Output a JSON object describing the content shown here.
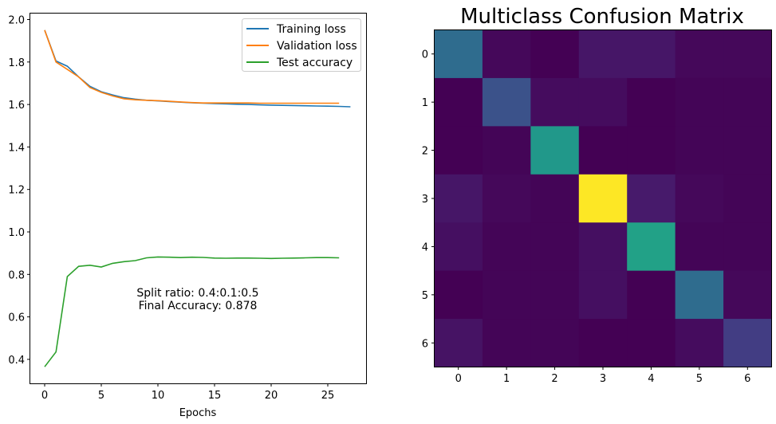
{
  "chart_data": [
    {
      "type": "line",
      "title": "",
      "xlabel": "Epochs",
      "ylabel": "",
      "xlim": [
        -1.35,
        28.35
      ],
      "ylim": [
        0.29,
        2.03
      ],
      "xticks": [
        "0",
        "5",
        "10",
        "15",
        "20",
        "25"
      ],
      "yticks": [
        "0.4",
        "0.6",
        "0.8",
        "1.0",
        "1.2",
        "1.4",
        "1.6",
        "1.8",
        "2.0"
      ],
      "grid": false,
      "legend_position": "upper-right",
      "annotation": [
        "Split ratio: 0.4:0.1:0.5",
        "Final Accuracy: 0.878"
      ],
      "series": [
        {
          "name": "Training loss",
          "color": "#1f77b4",
          "x": [
            0,
            1,
            2,
            3,
            4,
            5,
            6,
            7,
            8,
            9,
            10,
            11,
            12,
            13,
            14,
            15,
            16,
            17,
            18,
            19,
            20,
            21,
            22,
            23,
            24,
            25,
            26,
            27
          ],
          "y": [
            1.95,
            1.805,
            1.78,
            1.73,
            1.685,
            1.66,
            1.645,
            1.632,
            1.625,
            1.62,
            1.617,
            1.614,
            1.611,
            1.608,
            1.606,
            1.604,
            1.603,
            1.601,
            1.6,
            1.598,
            1.597,
            1.596,
            1.595,
            1.594,
            1.593,
            1.592,
            1.591,
            1.589
          ]
        },
        {
          "name": "Validation loss",
          "color": "#ff7f0e",
          "x": [
            0,
            1,
            2,
            3,
            4,
            5,
            6,
            7,
            8,
            9,
            10,
            11,
            12,
            13,
            14,
            15,
            16,
            17,
            18,
            19,
            20,
            21,
            22,
            23,
            24,
            25,
            26
          ],
          "y": [
            1.95,
            1.8,
            1.765,
            1.73,
            1.68,
            1.657,
            1.64,
            1.627,
            1.622,
            1.62,
            1.618,
            1.615,
            1.612,
            1.609,
            1.607,
            1.607,
            1.607,
            1.607,
            1.607,
            1.606,
            1.606,
            1.606,
            1.606,
            1.606,
            1.606,
            1.606,
            1.606
          ]
        },
        {
          "name": "Test accuracy",
          "color": "#2ca02c",
          "x": [
            0,
            1,
            2,
            3,
            4,
            5,
            6,
            7,
            8,
            9,
            10,
            11,
            12,
            13,
            14,
            15,
            16,
            17,
            18,
            19,
            20,
            21,
            22,
            23,
            24,
            25,
            26
          ],
          "y": [
            0.365,
            0.435,
            0.79,
            0.838,
            0.843,
            0.835,
            0.852,
            0.86,
            0.865,
            0.878,
            0.882,
            0.881,
            0.879,
            0.881,
            0.88,
            0.877,
            0.876,
            0.877,
            0.877,
            0.876,
            0.875,
            0.876,
            0.877,
            0.878,
            0.879,
            0.879,
            0.878
          ]
        }
      ]
    },
    {
      "type": "heatmap",
      "title": "Multiclass Confusion Matrix",
      "colormap": "viridis",
      "xticks": [
        "0",
        "1",
        "2",
        "3",
        "4",
        "5",
        "6"
      ],
      "yticks": [
        "0",
        "1",
        "2",
        "3",
        "4",
        "5",
        "6"
      ],
      "values": [
        [
          35,
          2,
          0,
          6,
          6,
          2,
          2
        ],
        [
          0,
          25,
          3,
          3,
          0,
          1,
          1
        ],
        [
          0,
          1,
          53,
          0,
          0,
          1,
          1
        ],
        [
          6,
          2,
          1,
          100,
          7,
          2,
          1
        ],
        [
          4,
          1,
          1,
          4,
          57,
          1,
          1
        ],
        [
          0,
          1,
          1,
          4,
          0,
          35,
          2
        ],
        [
          5,
          1,
          1,
          0,
          0,
          3,
          18
        ]
      ]
    }
  ]
}
